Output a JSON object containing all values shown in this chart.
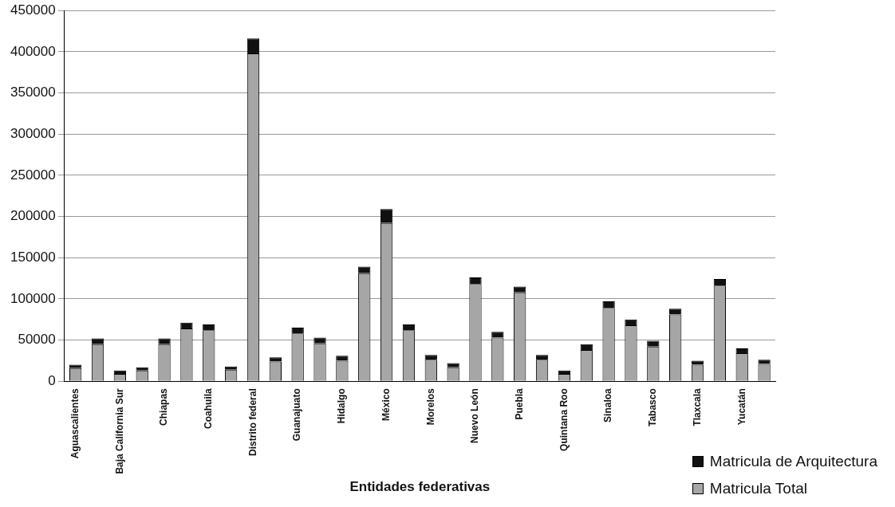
{
  "chart_data": {
    "type": "bar",
    "stacked": true,
    "xlabel": "Entidades federativas",
    "categories": [
      "Aguascalientes",
      null,
      "Baja California Sur",
      null,
      "Chiapas",
      null,
      "Coahuila",
      null,
      "Distrito federal",
      null,
      "Guanajuato",
      null,
      "Hidalgo",
      null,
      "México",
      null,
      "Morelos",
      null,
      "Nuevo León",
      null,
      "Puebla",
      null,
      "Quintana Roo",
      null,
      "Sinaloa",
      null,
      "Tabasco",
      null,
      "Tlaxcala",
      null,
      "Yucatán",
      null
    ],
    "series": [
      {
        "name": "Matricula Total",
        "color": "#a6a6a6",
        "values": [
          16000,
          45000,
          9000,
          13000,
          45000,
          64000,
          62000,
          14000,
          398000,
          24000,
          58000,
          46000,
          25000,
          131000,
          192000,
          62000,
          26000,
          17000,
          118000,
          53000,
          108000,
          26000,
          9000,
          38000,
          89000,
          68000,
          42000,
          81000,
          20000,
          116000,
          34000,
          21000
        ]
      },
      {
        "name": "Matricula de Arquitectura",
        "color": "#111111",
        "values": [
          4000,
          7000,
          4000,
          4000,
          7000,
          7000,
          7000,
          4000,
          18000,
          5000,
          7000,
          7000,
          6000,
          8000,
          17000,
          7000,
          6000,
          5000,
          8000,
          7000,
          7000,
          6000,
          4000,
          7000,
          8000,
          7000,
          7000,
          7000,
          5000,
          8000,
          6000,
          5000
        ]
      }
    ],
    "ylim": [
      0,
      450000
    ],
    "yticks": [
      0,
      50000,
      100000,
      150000,
      200000,
      250000,
      300000,
      350000,
      400000,
      450000
    ],
    "grid": "y",
    "legend": "bottom right"
  }
}
